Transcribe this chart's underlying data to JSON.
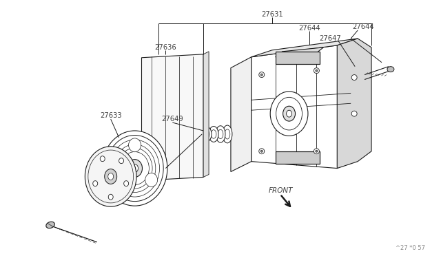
{
  "bg_color": "#ffffff",
  "line_color": "#1a1a1a",
  "text_color": "#404040",
  "watermark": "^27 *0 57",
  "figsize": [
    6.4,
    3.72
  ],
  "dpi": 100
}
